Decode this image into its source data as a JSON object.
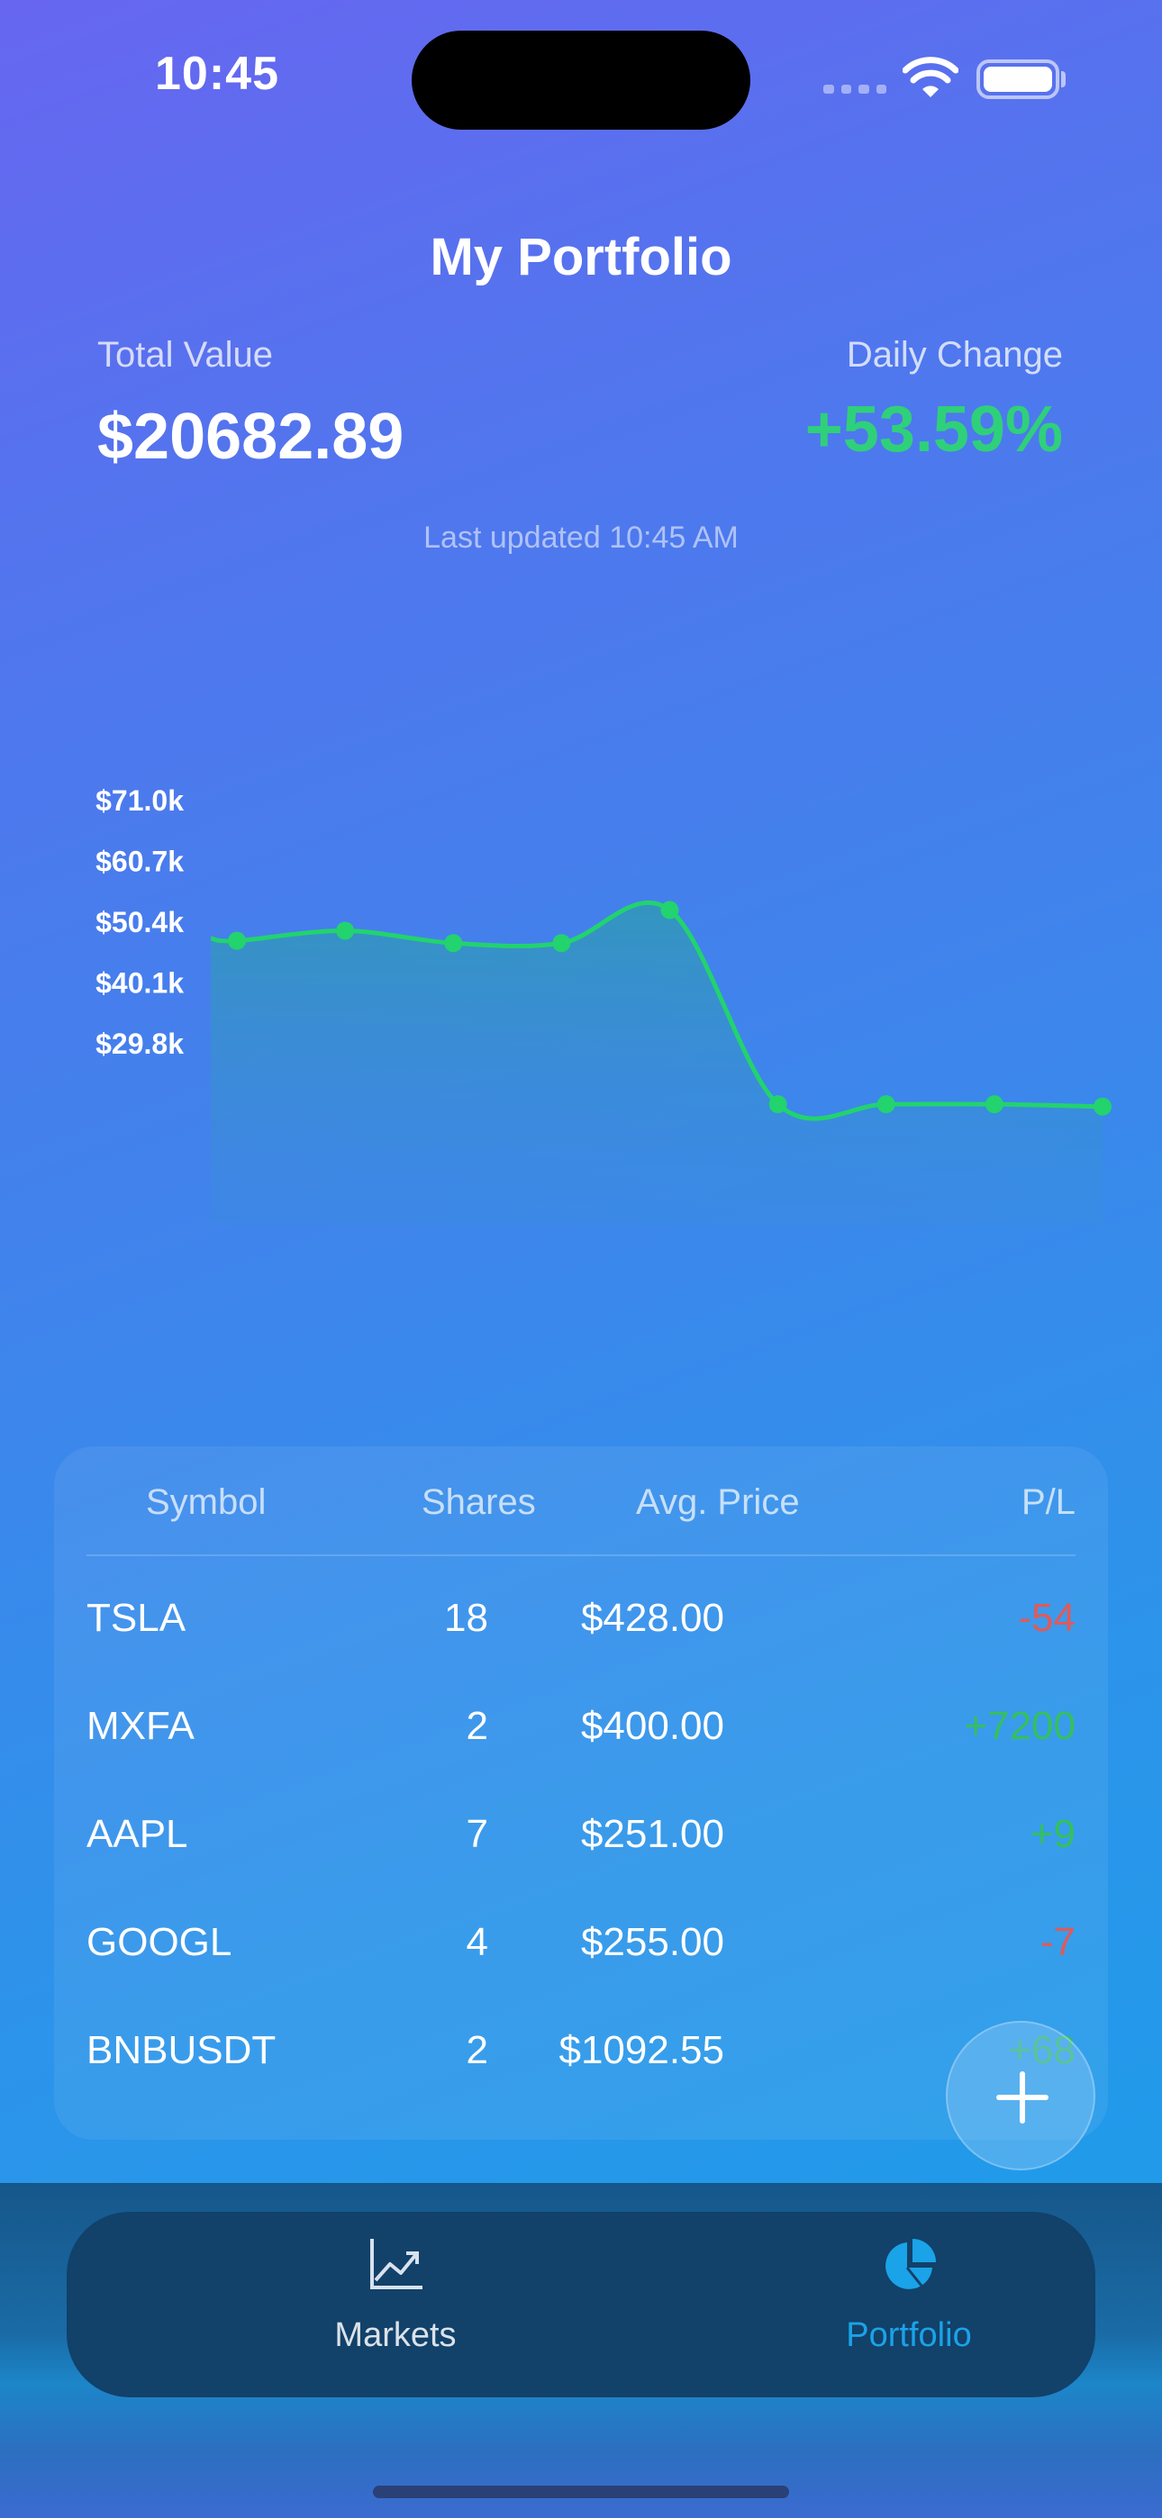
{
  "status_bar": {
    "time": "10:45"
  },
  "header": {
    "title": "My Portfolio",
    "total_label": "Total Value",
    "total_value": "$20682.89",
    "change_label": "Daily Change",
    "change_value": "+53.59%",
    "updated": "Last updated 10:45 AM"
  },
  "colors": {
    "accent": "#1aa3e8",
    "positive": "#2fd07a",
    "negative": "#e05a5a",
    "line": "#22d36e"
  },
  "chart_data": {
    "type": "area",
    "y_tick_labels": [
      "$71.0k",
      "$60.7k",
      "$50.4k",
      "$40.1k",
      "$29.8k"
    ],
    "y_tick_values": [
      71.0,
      60.7,
      50.4,
      40.1,
      29.8
    ],
    "points": [
      47.1,
      48.8,
      46.7,
      46.7,
      52.3,
      19.4,
      19.4,
      19.4,
      19.0
    ],
    "start_value": 47.5,
    "grid": false,
    "legend": "none"
  },
  "table": {
    "headers": {
      "symbol": "Symbol",
      "shares": "Shares",
      "avg_price": "Avg. Price",
      "pl": "P/L"
    },
    "rows": [
      {
        "symbol": "TSLA",
        "shares": "18",
        "avg_price": "$428.00",
        "pl": "-54",
        "pl_sign": "neg"
      },
      {
        "symbol": "MXFA",
        "shares": "2",
        "avg_price": "$400.00",
        "pl": "+7200",
        "pl_sign": "pos"
      },
      {
        "symbol": "AAPL",
        "shares": "7",
        "avg_price": "$251.00",
        "pl": "+9",
        "pl_sign": "pos"
      },
      {
        "symbol": "GOOGL",
        "shares": "4",
        "avg_price": "$255.00",
        "pl": "-7",
        "pl_sign": "neg"
      },
      {
        "symbol": "BNBUSDT",
        "shares": "2",
        "avg_price": "$1092.55",
        "pl": "+68",
        "pl_sign": "pos"
      }
    ]
  },
  "fab": {
    "icon": "plus-icon"
  },
  "tabbar": {
    "markets": {
      "label": "Markets",
      "icon": "chart-line-icon"
    },
    "portfolio": {
      "label": "Portfolio",
      "icon": "pie-chart-icon"
    }
  }
}
